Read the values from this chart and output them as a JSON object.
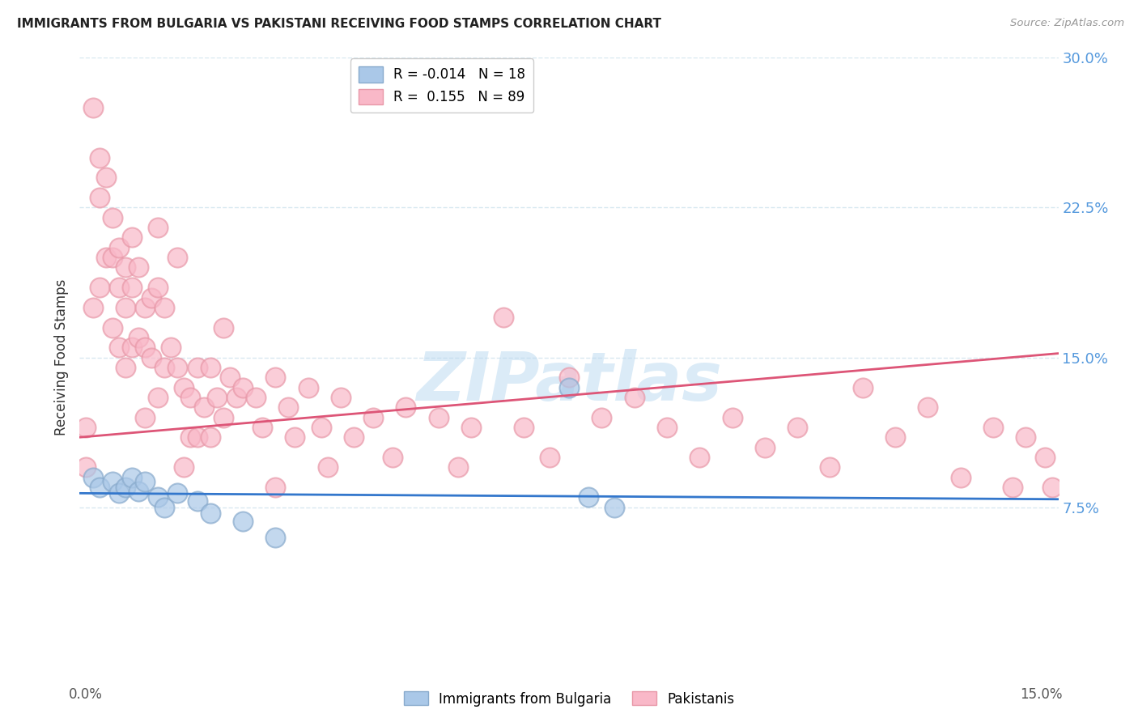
{
  "title": "IMMIGRANTS FROM BULGARIA VS PAKISTANI RECEIVING FOOD STAMPS CORRELATION CHART",
  "source": "Source: ZipAtlas.com",
  "ylabel": "Receiving Food Stamps",
  "xmin": 0.0,
  "xmax": 0.15,
  "ymin": 0.0,
  "ymax": 0.3,
  "yticks": [
    0.075,
    0.15,
    0.225,
    0.3
  ],
  "ytick_labels": [
    "7.5%",
    "15.0%",
    "22.5%",
    "30.0%"
  ],
  "xtick_labels": [
    "0.0%",
    "",
    "",
    "",
    "",
    "",
    "15.0%"
  ],
  "watermark_text": "ZIPatlas",
  "blue_dot_color": "#aac8e8",
  "blue_dot_edge": "#88aacc",
  "pink_dot_color": "#f9b8c8",
  "pink_dot_edge": "#e898a8",
  "blue_line_color": "#3377cc",
  "pink_line_color": "#dd5577",
  "grid_color": "#d8e8f0",
  "tick_label_color": "#5599dd",
  "background_color": "#ffffff",
  "title_color": "#222222",
  "source_color": "#999999",
  "ylabel_color": "#333333",
  "legend_blue_label": "R = -0.014   N = 18",
  "legend_pink_label": "R =  0.155   N = 89",
  "bottom_legend_blue": "Immigrants from Bulgaria",
  "bottom_legend_pink": "Pakistanis",
  "blue_trend_x": [
    0.0,
    0.15
  ],
  "blue_trend_y": [
    0.082,
    0.079
  ],
  "pink_trend_x": [
    0.0,
    0.15
  ],
  "pink_trend_y": [
    0.11,
    0.152
  ],
  "blue_x": [
    0.002,
    0.003,
    0.005,
    0.006,
    0.007,
    0.008,
    0.009,
    0.01,
    0.012,
    0.013,
    0.015,
    0.018,
    0.02,
    0.025,
    0.03,
    0.075,
    0.078,
    0.082
  ],
  "blue_y": [
    0.09,
    0.085,
    0.088,
    0.082,
    0.085,
    0.09,
    0.083,
    0.088,
    0.08,
    0.075,
    0.082,
    0.078,
    0.072,
    0.068,
    0.06,
    0.135,
    0.08,
    0.075
  ],
  "pink_x": [
    0.001,
    0.001,
    0.002,
    0.002,
    0.003,
    0.003,
    0.003,
    0.004,
    0.004,
    0.005,
    0.005,
    0.005,
    0.006,
    0.006,
    0.006,
    0.007,
    0.007,
    0.007,
    0.008,
    0.008,
    0.008,
    0.009,
    0.009,
    0.01,
    0.01,
    0.01,
    0.011,
    0.011,
    0.012,
    0.012,
    0.012,
    0.013,
    0.013,
    0.014,
    0.015,
    0.015,
    0.016,
    0.016,
    0.017,
    0.017,
    0.018,
    0.018,
    0.019,
    0.02,
    0.02,
    0.021,
    0.022,
    0.022,
    0.023,
    0.024,
    0.025,
    0.027,
    0.028,
    0.03,
    0.03,
    0.032,
    0.033,
    0.035,
    0.037,
    0.038,
    0.04,
    0.042,
    0.045,
    0.048,
    0.05,
    0.055,
    0.058,
    0.06,
    0.065,
    0.068,
    0.072,
    0.075,
    0.08,
    0.085,
    0.09,
    0.095,
    0.1,
    0.105,
    0.11,
    0.115,
    0.12,
    0.125,
    0.13,
    0.135,
    0.14,
    0.143,
    0.145,
    0.148,
    0.149
  ],
  "pink_y": [
    0.115,
    0.095,
    0.275,
    0.175,
    0.25,
    0.23,
    0.185,
    0.24,
    0.2,
    0.22,
    0.2,
    0.165,
    0.205,
    0.185,
    0.155,
    0.195,
    0.175,
    0.145,
    0.21,
    0.185,
    0.155,
    0.195,
    0.16,
    0.175,
    0.155,
    0.12,
    0.18,
    0.15,
    0.215,
    0.185,
    0.13,
    0.175,
    0.145,
    0.155,
    0.2,
    0.145,
    0.135,
    0.095,
    0.13,
    0.11,
    0.145,
    0.11,
    0.125,
    0.145,
    0.11,
    0.13,
    0.165,
    0.12,
    0.14,
    0.13,
    0.135,
    0.13,
    0.115,
    0.14,
    0.085,
    0.125,
    0.11,
    0.135,
    0.115,
    0.095,
    0.13,
    0.11,
    0.12,
    0.1,
    0.125,
    0.12,
    0.095,
    0.115,
    0.17,
    0.115,
    0.1,
    0.14,
    0.12,
    0.13,
    0.115,
    0.1,
    0.12,
    0.105,
    0.115,
    0.095,
    0.135,
    0.11,
    0.125,
    0.09,
    0.115,
    0.085,
    0.11,
    0.1,
    0.085
  ]
}
